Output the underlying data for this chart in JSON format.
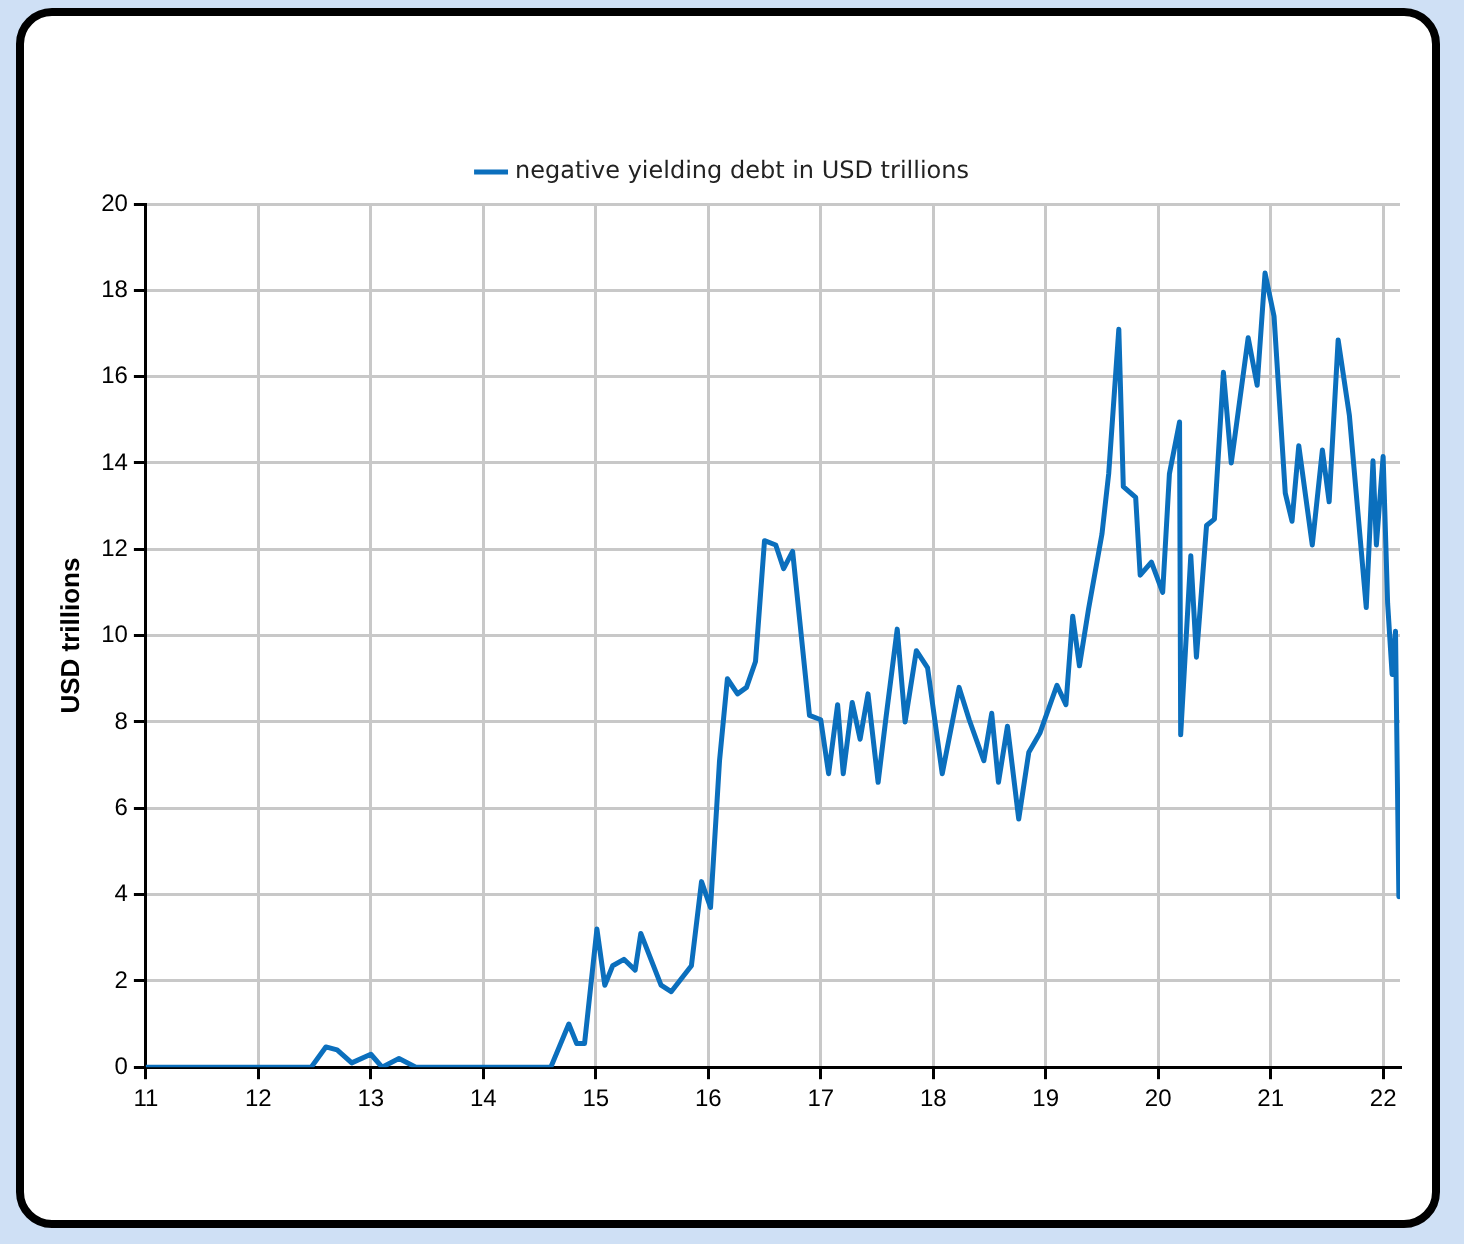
{
  "chart_data": {
    "type": "line",
    "ylabel": "USD trillions",
    "xlim": [
      11,
      22.15
    ],
    "xticks": [
      11,
      12,
      13,
      14,
      15,
      16,
      17,
      18,
      19,
      20,
      21,
      22
    ],
    "ylim": [
      0,
      20
    ],
    "yticks": [
      0,
      2,
      4,
      6,
      8,
      10,
      12,
      14,
      16,
      18,
      20
    ],
    "grid": true,
    "legend": "top",
    "marker": "none",
    "line_style": "solid",
    "series": [
      {
        "name": "negative yielding debt in USD trillions",
        "color": "#0b6fbd",
        "x": [
          11,
          12.4,
          12.47,
          12.6,
          12.7,
          12.83,
          13.0,
          13.1,
          13.25,
          13.4,
          14.6,
          14.76,
          14.83,
          14.9,
          15.01,
          15.08,
          15.15,
          15.25,
          15.35,
          15.4,
          15.58,
          15.67,
          15.85,
          15.94,
          16.02,
          16.1,
          16.17,
          16.26,
          16.34,
          16.42,
          16.5,
          16.6,
          16.67,
          16.75,
          16.9,
          17.0,
          17.07,
          17.15,
          17.2,
          17.28,
          17.35,
          17.42,
          17.51,
          17.58,
          17.68,
          17.75,
          17.85,
          17.95,
          18.08,
          18.23,
          18.32,
          18.45,
          18.52,
          18.58,
          18.66,
          18.76,
          18.85,
          18.95,
          19.1,
          19.18,
          19.24,
          19.3,
          19.38,
          19.5,
          19.56,
          19.65,
          19.69,
          19.8,
          19.84,
          19.94,
          20.04,
          20.1,
          20.19,
          20.2,
          20.29,
          20.34,
          20.43,
          20.5,
          20.58,
          20.65,
          20.8,
          20.88,
          20.95,
          21.03,
          21.13,
          21.19,
          21.25,
          21.37,
          21.46,
          21.52,
          21.6,
          21.7,
          21.85,
          21.91,
          21.94,
          22.0,
          22.04,
          22.08,
          22.11,
          22.14
        ],
        "values": [
          0,
          0,
          0,
          0.47,
          0.4,
          0.1,
          0.3,
          0,
          0.2,
          0,
          0,
          1.0,
          0.55,
          0.55,
          3.2,
          1.9,
          2.35,
          2.5,
          2.25,
          3.1,
          1.9,
          1.75,
          2.35,
          4.3,
          3.7,
          7.1,
          9.0,
          8.65,
          8.8,
          9.4,
          12.2,
          12.1,
          11.55,
          11.95,
          8.15,
          8.05,
          6.8,
          8.4,
          6.8,
          8.45,
          7.6,
          8.65,
          6.6,
          8.1,
          10.15,
          8.0,
          9.65,
          9.25,
          6.8,
          8.8,
          8.05,
          7.1,
          8.2,
          6.6,
          7.9,
          5.75,
          7.3,
          7.75,
          8.85,
          8.4,
          10.45,
          9.3,
          10.6,
          12.35,
          13.75,
          17.1,
          13.45,
          13.2,
          11.4,
          11.7,
          11.0,
          13.75,
          14.95,
          7.7,
          11.85,
          9.5,
          12.55,
          12.7,
          16.1,
          14.0,
          16.9,
          15.8,
          18.4,
          17.4,
          13.3,
          12.65,
          14.4,
          12.1,
          14.3,
          13.1,
          16.85,
          15.1,
          10.65,
          14.05,
          12.1,
          14.15,
          10.75,
          9.1,
          10.1,
          3.95
        ]
      }
    ]
  }
}
